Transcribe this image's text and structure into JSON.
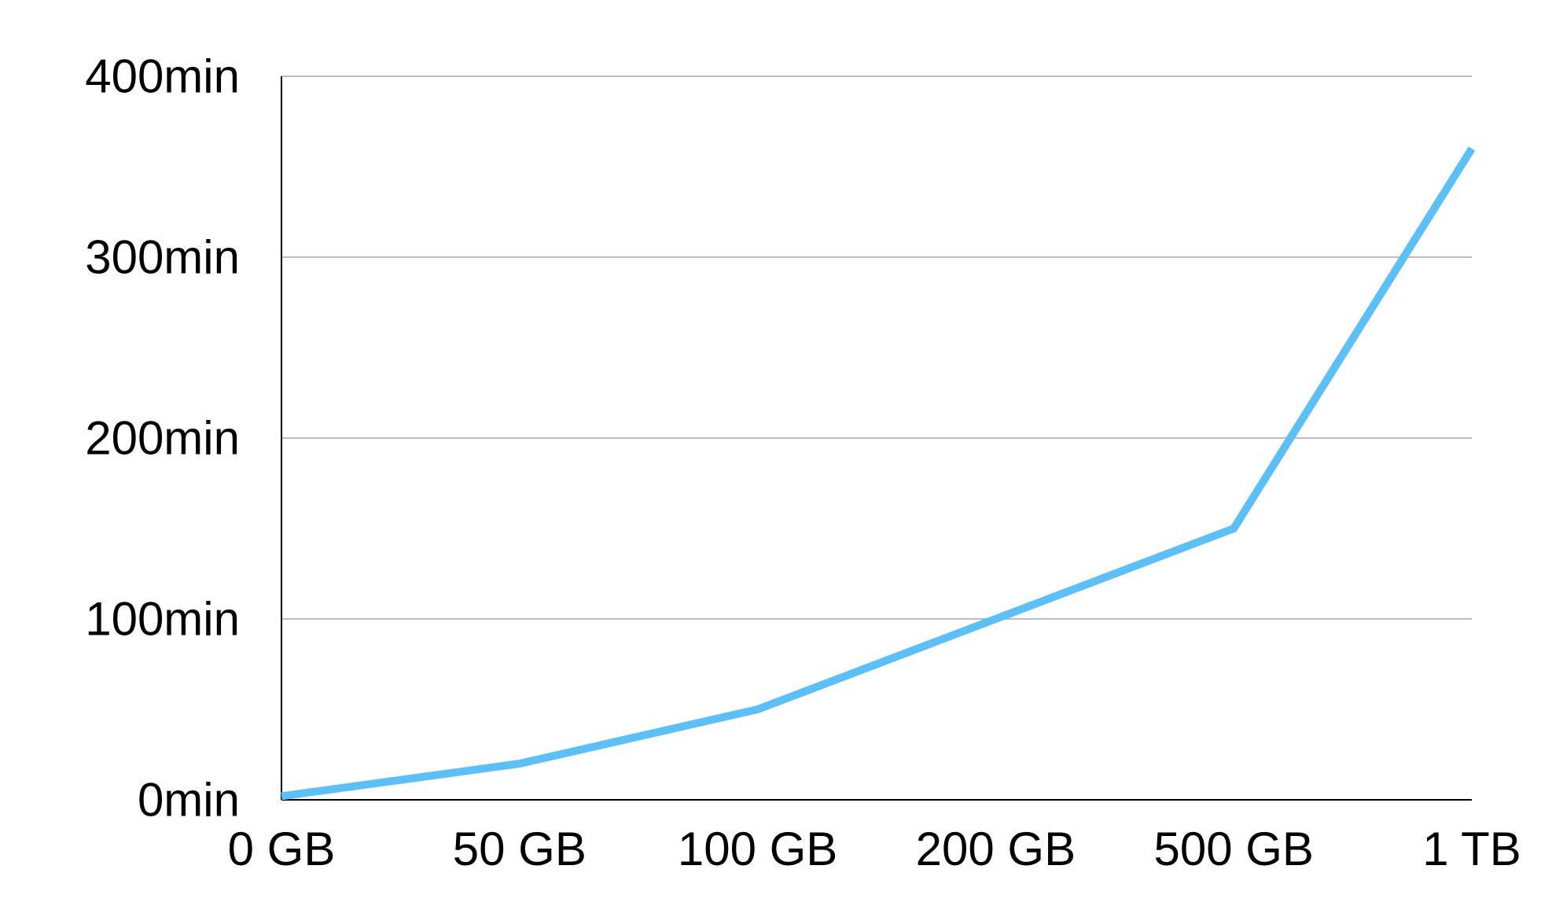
{
  "chart_data": {
    "type": "line",
    "title": "",
    "xlabel": "",
    "ylabel": "",
    "categories": [
      "0 GB",
      "50 GB",
      "100 GB",
      "200 GB",
      "500 GB",
      "1 TB"
    ],
    "series": [
      {
        "values": [
          2,
          20,
          50,
          100,
          150,
          360
        ],
        "color": "#5bc0f8"
      }
    ],
    "y_ticks": [
      0,
      100,
      200,
      300,
      400
    ],
    "y_tick_labels": [
      "0min",
      "100min",
      "200min",
      "300min",
      "400min"
    ],
    "ylim": [
      0,
      400
    ],
    "grid": true,
    "legend": "none"
  }
}
